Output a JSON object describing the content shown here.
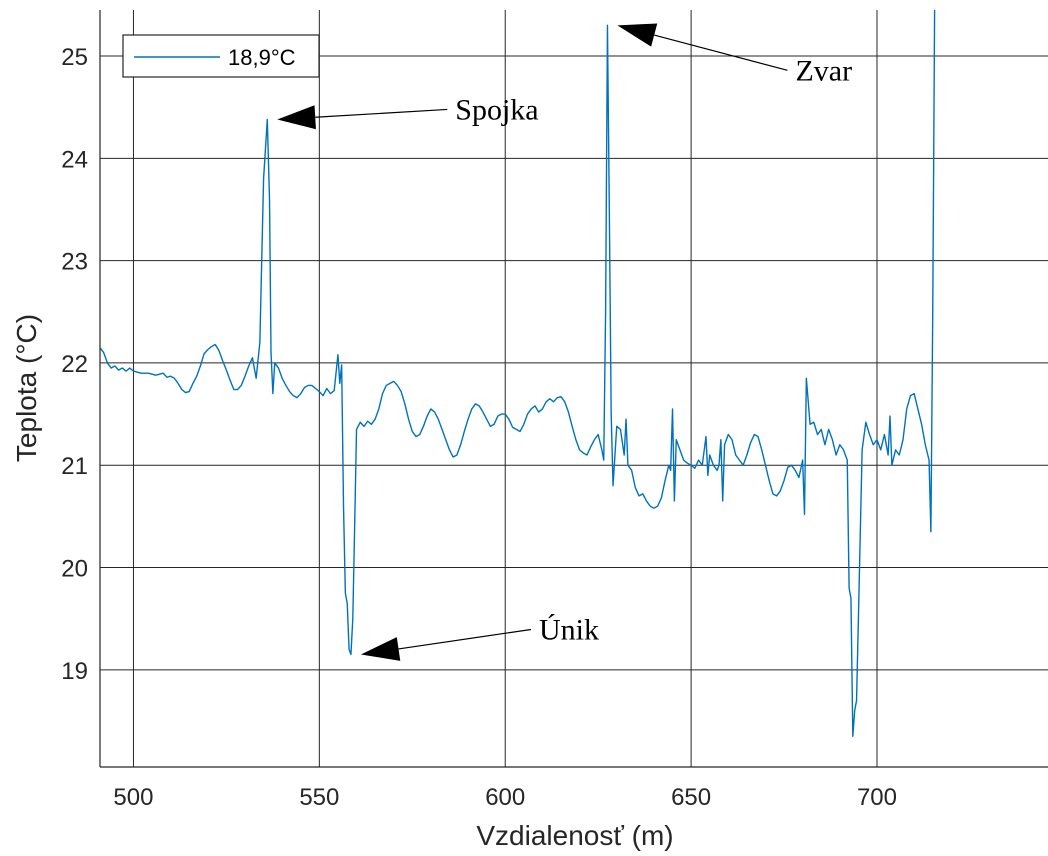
{
  "chart_data": {
    "type": "line",
    "xlabel": "Vzdialenosť (m)",
    "ylabel": "Teplota (°C)",
    "xlim": [
      491,
      746
    ],
    "ylim": [
      18.05,
      25.45
    ],
    "xticks": [
      500,
      550,
      600,
      650,
      700
    ],
    "yticks": [
      19,
      20,
      21,
      22,
      23,
      24,
      25
    ],
    "xtick_labels": [
      "500",
      "550",
      "600",
      "650",
      "700"
    ],
    "ytick_labels": [
      "19",
      "20",
      "21",
      "22",
      "23",
      "24",
      "25"
    ],
    "grid": true,
    "legend_position": "top-left",
    "series": [
      {
        "name": "18,9°C",
        "color": "#0072BD",
        "points": [
          [
            491,
            22.15
          ],
          [
            492,
            22.1
          ],
          [
            493,
            22.0
          ],
          [
            494,
            21.95
          ],
          [
            495,
            21.97
          ],
          [
            496,
            21.93
          ],
          [
            497,
            21.95
          ],
          [
            498,
            21.92
          ],
          [
            499,
            21.95
          ],
          [
            500,
            21.92
          ],
          [
            502,
            21.9
          ],
          [
            504,
            21.9
          ],
          [
            506,
            21.88
          ],
          [
            508,
            21.9
          ],
          [
            509,
            21.86
          ],
          [
            510,
            21.87
          ],
          [
            511,
            21.85
          ],
          [
            512,
            21.8
          ],
          [
            513,
            21.74
          ],
          [
            514,
            21.71
          ],
          [
            515,
            21.72
          ],
          [
            516,
            21.8
          ],
          [
            517,
            21.87
          ],
          [
            518,
            21.97
          ],
          [
            519,
            22.09
          ],
          [
            520,
            22.13
          ],
          [
            521,
            22.16
          ],
          [
            522,
            22.18
          ],
          [
            523,
            22.12
          ],
          [
            524,
            22.02
          ],
          [
            525,
            21.93
          ],
          [
            526,
            21.83
          ],
          [
            527,
            21.74
          ],
          [
            528,
            21.74
          ],
          [
            529,
            21.78
          ],
          [
            530,
            21.87
          ],
          [
            531,
            21.97
          ],
          [
            532,
            22.05
          ],
          [
            533,
            21.85
          ],
          [
            534,
            22.2
          ],
          [
            535,
            23.8
          ],
          [
            536,
            24.38
          ],
          [
            536.6,
            23.6
          ],
          [
            537,
            22.1
          ],
          [
            537.5,
            21.7
          ],
          [
            538,
            22.0
          ],
          [
            539,
            21.95
          ],
          [
            540,
            21.85
          ],
          [
            541,
            21.78
          ],
          [
            542,
            21.72
          ],
          [
            543,
            21.68
          ],
          [
            544,
            21.66
          ],
          [
            545,
            21.7
          ],
          [
            546,
            21.76
          ],
          [
            547,
            21.78
          ],
          [
            548,
            21.78
          ],
          [
            549,
            21.75
          ],
          [
            550,
            21.72
          ],
          [
            551,
            21.68
          ],
          [
            552,
            21.75
          ],
          [
            553,
            21.7
          ],
          [
            554,
            21.73
          ],
          [
            555,
            22.08
          ],
          [
            555.5,
            21.8
          ],
          [
            556,
            21.98
          ],
          [
            556.5,
            20.6
          ],
          [
            557,
            19.75
          ],
          [
            557.5,
            19.65
          ],
          [
            558,
            19.2
          ],
          [
            558.5,
            19.15
          ],
          [
            559,
            19.5
          ],
          [
            559.5,
            20.4
          ],
          [
            560,
            21.35
          ],
          [
            561,
            21.42
          ],
          [
            562,
            21.38
          ],
          [
            563,
            21.43
          ],
          [
            564,
            21.4
          ],
          [
            565,
            21.45
          ],
          [
            566,
            21.55
          ],
          [
            567,
            21.7
          ],
          [
            568,
            21.78
          ],
          [
            569,
            21.8
          ],
          [
            570,
            21.82
          ],
          [
            571,
            21.78
          ],
          [
            572,
            21.72
          ],
          [
            573,
            21.6
          ],
          [
            574,
            21.45
          ],
          [
            575,
            21.33
          ],
          [
            576,
            21.28
          ],
          [
            577,
            21.3
          ],
          [
            578,
            21.38
          ],
          [
            579,
            21.48
          ],
          [
            580,
            21.55
          ],
          [
            581,
            21.52
          ],
          [
            582,
            21.45
          ],
          [
            583,
            21.35
          ],
          [
            584,
            21.25
          ],
          [
            585,
            21.15
          ],
          [
            586,
            21.08
          ],
          [
            587,
            21.1
          ],
          [
            588,
            21.2
          ],
          [
            589,
            21.33
          ],
          [
            590,
            21.45
          ],
          [
            591,
            21.55
          ],
          [
            592,
            21.6
          ],
          [
            593,
            21.58
          ],
          [
            594,
            21.52
          ],
          [
            595,
            21.45
          ],
          [
            596,
            21.38
          ],
          [
            597,
            21.4
          ],
          [
            598,
            21.48
          ],
          [
            599,
            21.5
          ],
          [
            600,
            21.5
          ],
          [
            601,
            21.45
          ],
          [
            602,
            21.37
          ],
          [
            603,
            21.35
          ],
          [
            604,
            21.33
          ],
          [
            605,
            21.4
          ],
          [
            606,
            21.5
          ],
          [
            607,
            21.55
          ],
          [
            608,
            21.58
          ],
          [
            609,
            21.52
          ],
          [
            610,
            21.55
          ],
          [
            611,
            21.62
          ],
          [
            612,
            21.65
          ],
          [
            613,
            21.62
          ],
          [
            614,
            21.66
          ],
          [
            615,
            21.67
          ],
          [
            616,
            21.62
          ],
          [
            617,
            21.52
          ],
          [
            618,
            21.38
          ],
          [
            619,
            21.25
          ],
          [
            620,
            21.15
          ],
          [
            621,
            21.12
          ],
          [
            622,
            21.1
          ],
          [
            623,
            21.18
          ],
          [
            624,
            21.25
          ],
          [
            625,
            21.3
          ],
          [
            626,
            21.15
          ],
          [
            626.5,
            21.05
          ],
          [
            627,
            22.5
          ],
          [
            627.5,
            25.3
          ],
          [
            628,
            23.5
          ],
          [
            628.5,
            21.5
          ],
          [
            629,
            20.8
          ],
          [
            630,
            21.38
          ],
          [
            631,
            21.35
          ],
          [
            632,
            21.1
          ],
          [
            632.5,
            21.45
          ],
          [
            633,
            21.0
          ],
          [
            634,
            20.95
          ],
          [
            635,
            20.78
          ],
          [
            636,
            20.7
          ],
          [
            637,
            20.72
          ],
          [
            638,
            20.65
          ],
          [
            639,
            20.6
          ],
          [
            640,
            20.58
          ],
          [
            641,
            20.6
          ],
          [
            642,
            20.68
          ],
          [
            643,
            20.85
          ],
          [
            644,
            21.0
          ],
          [
            644.5,
            20.95
          ],
          [
            645,
            21.55
          ],
          [
            645.5,
            20.65
          ],
          [
            646,
            21.25
          ],
          [
            647,
            21.15
          ],
          [
            648,
            21.05
          ],
          [
            649,
            21.02
          ],
          [
            650,
            21.0
          ],
          [
            651,
            20.97
          ],
          [
            652,
            21.05
          ],
          [
            653,
            21.0
          ],
          [
            654,
            21.28
          ],
          [
            654.5,
            20.9
          ],
          [
            655,
            21.1
          ],
          [
            656,
            21.0
          ],
          [
            657,
            20.95
          ],
          [
            657.5,
            21.0
          ],
          [
            658,
            21.25
          ],
          [
            658.5,
            20.65
          ],
          [
            659,
            21.2
          ],
          [
            660,
            21.3
          ],
          [
            661,
            21.25
          ],
          [
            662,
            21.1
          ],
          [
            663,
            21.05
          ],
          [
            664,
            21.0
          ],
          [
            665,
            21.1
          ],
          [
            666,
            21.22
          ],
          [
            667,
            21.3
          ],
          [
            668,
            21.28
          ],
          [
            669,
            21.15
          ],
          [
            670,
            21.0
          ],
          [
            671,
            20.85
          ],
          [
            672,
            20.72
          ],
          [
            673,
            20.7
          ],
          [
            674,
            20.75
          ],
          [
            675,
            20.85
          ],
          [
            676,
            20.98
          ],
          [
            677,
            21.0
          ],
          [
            678,
            20.95
          ],
          [
            679,
            20.88
          ],
          [
            680,
            21.05
          ],
          [
            680.5,
            20.52
          ],
          [
            681,
            21.85
          ],
          [
            682,
            21.4
          ],
          [
            683,
            21.42
          ],
          [
            684,
            21.3
          ],
          [
            685,
            21.35
          ],
          [
            686,
            21.2
          ],
          [
            687,
            21.35
          ],
          [
            688,
            21.25
          ],
          [
            689,
            21.1
          ],
          [
            690,
            21.2
          ],
          [
            691,
            21.15
          ],
          [
            692,
            21.05
          ],
          [
            692.5,
            19.8
          ],
          [
            693,
            19.7
          ],
          [
            693.5,
            18.35
          ],
          [
            694,
            18.6
          ],
          [
            694.5,
            18.7
          ],
          [
            695,
            19.5
          ],
          [
            696,
            21.15
          ],
          [
            697,
            21.42
          ],
          [
            698,
            21.3
          ],
          [
            699,
            21.2
          ],
          [
            700,
            21.25
          ],
          [
            701,
            21.15
          ],
          [
            702,
            21.3
          ],
          [
            703,
            21.1
          ],
          [
            703.5,
            21.48
          ],
          [
            704,
            21.0
          ],
          [
            705,
            21.15
          ],
          [
            706,
            21.1
          ],
          [
            707,
            21.25
          ],
          [
            708,
            21.55
          ],
          [
            709,
            21.68
          ],
          [
            710,
            21.7
          ],
          [
            711,
            21.55
          ],
          [
            712,
            21.4
          ],
          [
            713,
            21.2
          ],
          [
            714,
            21.05
          ],
          [
            714.5,
            20.35
          ],
          [
            715,
            22.5
          ],
          [
            715.5,
            25.45
          ]
        ]
      }
    ],
    "annotations": [
      {
        "text": "Spojka",
        "x": 536,
        "y": 24.38
      },
      {
        "text": "Zvar",
        "x": 627.5,
        "y": 25.3
      },
      {
        "text": "Únik",
        "x": 558.5,
        "y": 19.15
      }
    ]
  }
}
